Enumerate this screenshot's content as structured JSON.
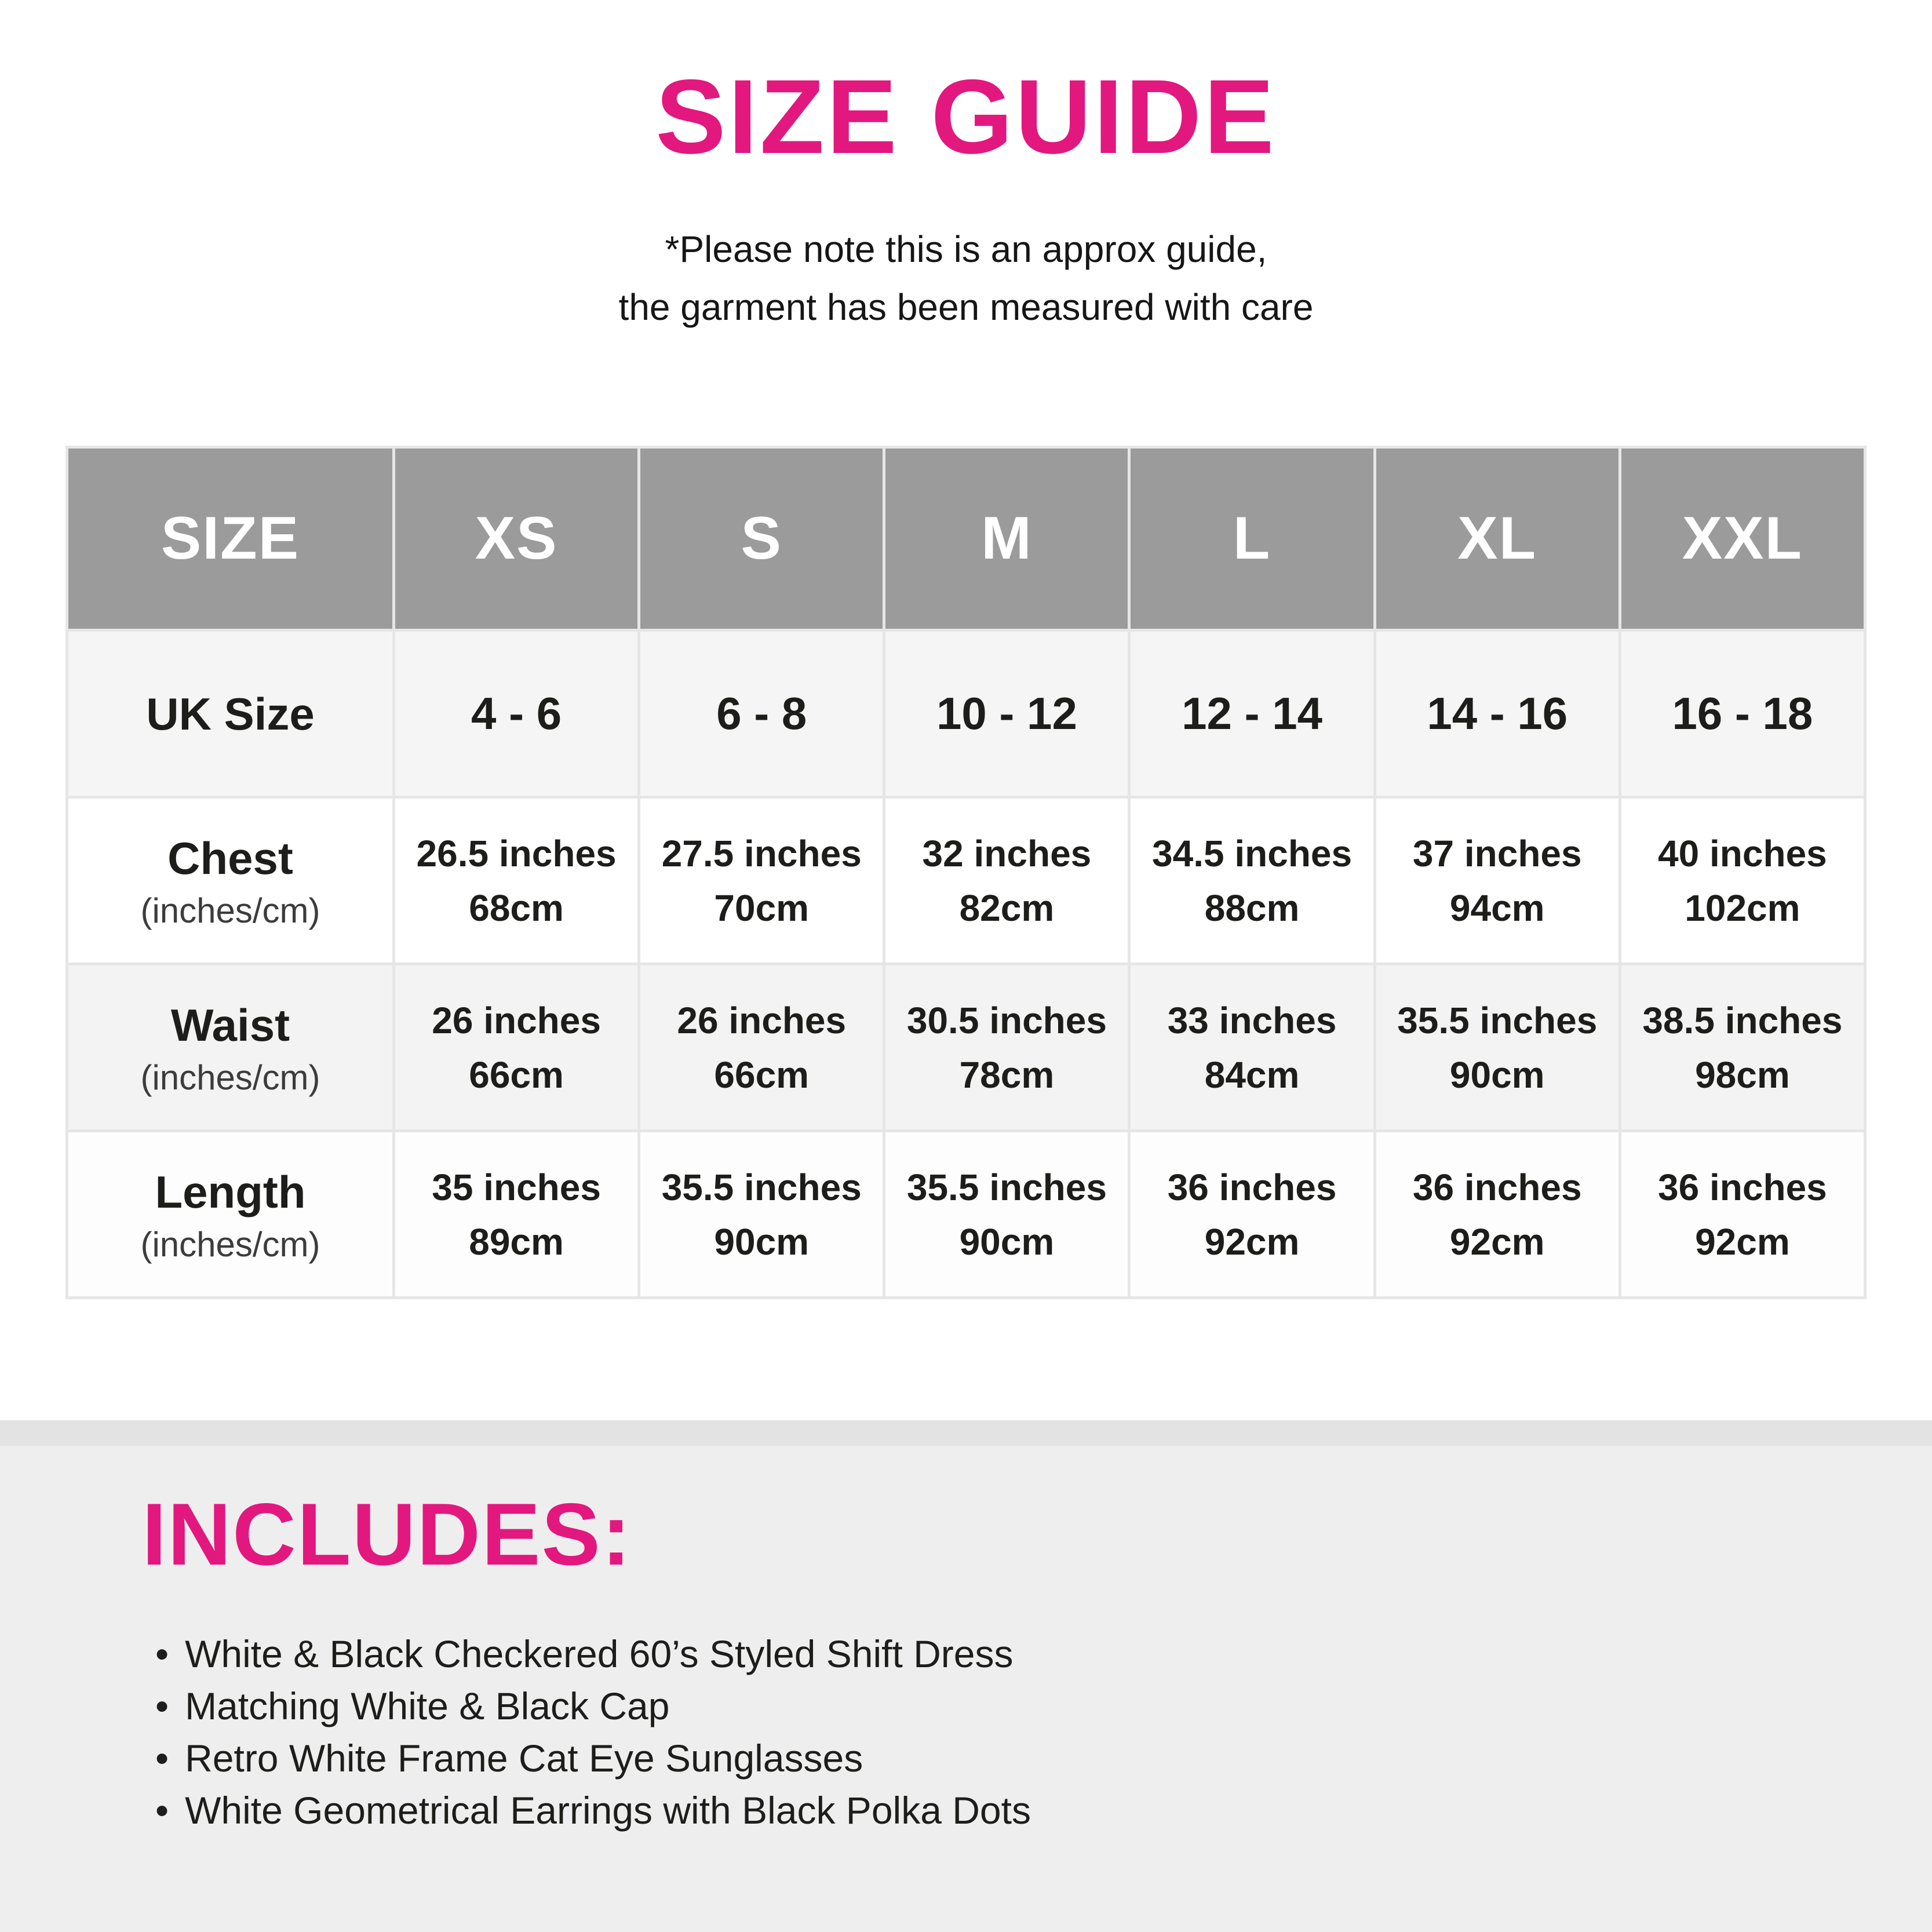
{
  "page": {
    "title": "SIZE GUIDE",
    "note_line1": "*Please note this is an approx guide,",
    "note_line2": "the garment has been measured with care"
  },
  "colors": {
    "accent_pink": "#e2187f",
    "header_gray": "#9b9b9b",
    "panel_gray": "#eeeeee",
    "grid_line": "#e6e6e6"
  },
  "table": {
    "header": [
      "SIZE",
      "XS",
      "S",
      "M",
      "L",
      "XL",
      "XXL"
    ],
    "rows": [
      {
        "label": "UK Size",
        "sub": "",
        "values": [
          {
            "l1": "4 - 6",
            "l2": ""
          },
          {
            "l1": "6 - 8",
            "l2": ""
          },
          {
            "l1": "10 - 12",
            "l2": ""
          },
          {
            "l1": "12 - 14",
            "l2": ""
          },
          {
            "l1": "14 - 16",
            "l2": ""
          },
          {
            "l1": "16 - 18",
            "l2": ""
          }
        ]
      },
      {
        "label": "Chest",
        "sub": "(inches/cm)",
        "values": [
          {
            "l1": "26.5 inches",
            "l2": "68cm"
          },
          {
            "l1": "27.5 inches",
            "l2": "70cm"
          },
          {
            "l1": "32 inches",
            "l2": "82cm"
          },
          {
            "l1": "34.5 inches",
            "l2": "88cm"
          },
          {
            "l1": "37 inches",
            "l2": "94cm"
          },
          {
            "l1": "40 inches",
            "l2": "102cm"
          }
        ]
      },
      {
        "label": "Waist",
        "sub": "(inches/cm)",
        "values": [
          {
            "l1": "26 inches",
            "l2": "66cm"
          },
          {
            "l1": "26 inches",
            "l2": "66cm"
          },
          {
            "l1": "30.5 inches",
            "l2": "78cm"
          },
          {
            "l1": "33 inches",
            "l2": "84cm"
          },
          {
            "l1": "35.5 inches",
            "l2": "90cm"
          },
          {
            "l1": "38.5 inches",
            "l2": "98cm"
          }
        ]
      },
      {
        "label": "Length",
        "sub": "(inches/cm)",
        "values": [
          {
            "l1": "35 inches",
            "l2": "89cm"
          },
          {
            "l1": "35.5 inches",
            "l2": "90cm"
          },
          {
            "l1": "35.5 inches",
            "l2": "90cm"
          },
          {
            "l1": "36 inches",
            "l2": "92cm"
          },
          {
            "l1": "36 inches",
            "l2": "92cm"
          },
          {
            "l1": "36 inches",
            "l2": "92cm"
          }
        ]
      }
    ]
  },
  "includes": {
    "heading": "INCLUDES:",
    "bullet": "•",
    "items": [
      "White & Black Checkered 60’s Styled Shift Dress",
      "Matching White & Black Cap",
      "Retro White Frame Cat Eye Sunglasses",
      "White Geometrical Earrings with Black Polka Dots"
    ]
  }
}
